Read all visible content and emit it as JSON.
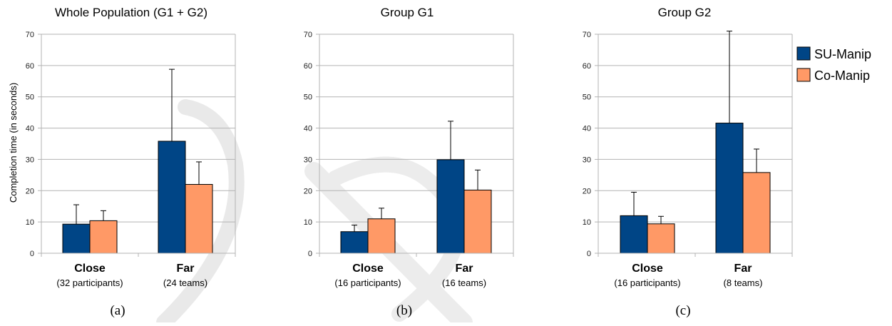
{
  "chart_data": [
    {
      "type": "bar",
      "title": "Whole Population (G1 + G2)",
      "caption": "(a)",
      "ylabel": "Completion time (in seconds)",
      "ylim": [
        0,
        70
      ],
      "yticks": [
        0,
        10,
        20,
        30,
        40,
        50,
        60,
        70
      ],
      "grid": true,
      "categories": [
        "Close",
        "Far"
      ],
      "category_notes": [
        "(32 participants)",
        "(24 teams)"
      ],
      "series": [
        {
          "name": "SU-Manip",
          "values": [
            9.3,
            35.8
          ],
          "error": [
            6.2,
            23.0
          ]
        },
        {
          "name": "Co-Manip",
          "values": [
            10.4,
            22.0
          ],
          "error": [
            3.2,
            7.2
          ]
        }
      ]
    },
    {
      "type": "bar",
      "title": "Group G1",
      "caption": "(b)",
      "ylabel": "",
      "ylim": [
        0,
        70
      ],
      "yticks": [
        0,
        10,
        20,
        30,
        40,
        50,
        60,
        70
      ],
      "grid": true,
      "categories": [
        "Close",
        "Far"
      ],
      "category_notes": [
        "(16 participants)",
        "(16 teams)"
      ],
      "series": [
        {
          "name": "SU-Manip",
          "values": [
            6.9,
            29.9
          ],
          "error": [
            2.1,
            12.3
          ]
        },
        {
          "name": "Co-Manip",
          "values": [
            11.0,
            20.2
          ],
          "error": [
            3.4,
            6.4
          ]
        }
      ]
    },
    {
      "type": "bar",
      "title": "Group G2",
      "caption": "(c)",
      "ylabel": "",
      "ylim": [
        0,
        70
      ],
      "yticks": [
        0,
        10,
        20,
        30,
        40,
        50,
        60,
        70
      ],
      "grid": true,
      "categories": [
        "Close",
        "Far"
      ],
      "category_notes": [
        "(16 participants)",
        "(8 teams)"
      ],
      "series": [
        {
          "name": "SU-Manip",
          "values": [
            12.0,
            41.6
          ],
          "error": [
            7.5,
            29.4
          ]
        },
        {
          "name": "Co-Manip",
          "values": [
            9.4,
            25.8
          ],
          "error": [
            2.4,
            7.5
          ]
        }
      ]
    }
  ],
  "legend": {
    "placement": "right",
    "items": [
      {
        "label": "SU-Manip",
        "color": "#004586"
      },
      {
        "label": "Co-Manip",
        "color": "#ff9966"
      }
    ]
  },
  "colors": {
    "series": [
      "#004586",
      "#ff9966"
    ],
    "watermark": "#e6e6e6"
  }
}
